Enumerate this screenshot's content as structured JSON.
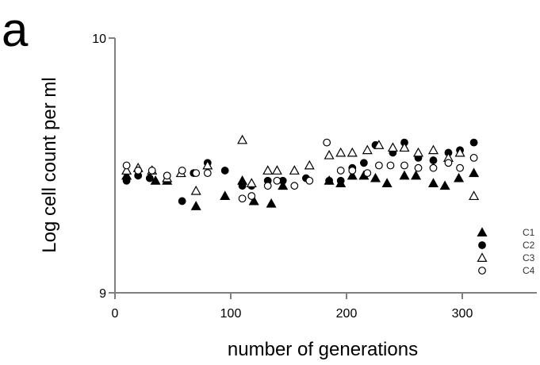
{
  "panel_label": "a",
  "chart_data": {
    "type": "scatter",
    "title": "",
    "xlabel": "number of generations",
    "ylabel": "Log cell count per ml",
    "xlim": [
      0,
      360
    ],
    "ylim": [
      9,
      10
    ],
    "x_ticks": [
      0,
      100,
      200,
      300
    ],
    "y_ticks": [
      9,
      10
    ],
    "grid": false,
    "legend_position": "bottom-right",
    "series": [
      {
        "name": "C1",
        "marker": "filled-triangle",
        "points": [
          [
            10,
            9.46
          ],
          [
            35,
            9.44
          ],
          [
            45,
            9.44
          ],
          [
            70,
            9.34
          ],
          [
            95,
            9.38
          ],
          [
            110,
            9.44
          ],
          [
            120,
            9.36
          ],
          [
            135,
            9.35
          ],
          [
            145,
            9.42
          ],
          [
            185,
            9.44
          ],
          [
            195,
            9.43
          ],
          [
            205,
            9.46
          ],
          [
            215,
            9.46
          ],
          [
            225,
            9.45
          ],
          [
            235,
            9.43
          ],
          [
            250,
            9.46
          ],
          [
            260,
            9.46
          ],
          [
            275,
            9.43
          ],
          [
            285,
            9.42
          ],
          [
            297,
            9.45
          ],
          [
            310,
            9.47
          ]
        ]
      },
      {
        "name": "C2",
        "marker": "filled-circle",
        "points": [
          [
            10,
            9.44
          ],
          [
            20,
            9.46
          ],
          [
            30,
            9.45
          ],
          [
            45,
            9.46
          ],
          [
            58,
            9.36
          ],
          [
            68,
            9.47
          ],
          [
            80,
            9.51
          ],
          [
            95,
            9.48
          ],
          [
            110,
            9.42
          ],
          [
            118,
            9.42
          ],
          [
            132,
            9.44
          ],
          [
            145,
            9.44
          ],
          [
            165,
            9.45
          ],
          [
            185,
            9.44
          ],
          [
            195,
            9.44
          ],
          [
            205,
            9.49
          ],
          [
            215,
            9.51
          ],
          [
            225,
            9.58
          ],
          [
            240,
            9.55
          ],
          [
            250,
            9.59
          ],
          [
            262,
            9.53
          ],
          [
            275,
            9.52
          ],
          [
            288,
            9.55
          ],
          [
            298,
            9.56
          ],
          [
            310,
            9.59
          ]
        ]
      },
      {
        "name": "C3",
        "marker": "open-triangle",
        "points": [
          [
            10,
            9.48
          ],
          [
            20,
            9.49
          ],
          [
            32,
            9.48
          ],
          [
            45,
            9.45
          ],
          [
            57,
            9.47
          ],
          [
            70,
            9.4
          ],
          [
            80,
            9.5
          ],
          [
            110,
            9.6
          ],
          [
            118,
            9.43
          ],
          [
            132,
            9.48
          ],
          [
            140,
            9.48
          ],
          [
            155,
            9.48
          ],
          [
            168,
            9.5
          ],
          [
            185,
            9.54
          ],
          [
            195,
            9.55
          ],
          [
            205,
            9.55
          ],
          [
            218,
            9.56
          ],
          [
            228,
            9.58
          ],
          [
            240,
            9.57
          ],
          [
            250,
            9.57
          ],
          [
            262,
            9.55
          ],
          [
            275,
            9.56
          ],
          [
            288,
            9.53
          ],
          [
            298,
            9.55
          ],
          [
            310,
            9.38
          ]
        ]
      },
      {
        "name": "C4",
        "marker": "open-circle",
        "points": [
          [
            10,
            9.5
          ],
          [
            20,
            9.48
          ],
          [
            32,
            9.48
          ],
          [
            45,
            9.46
          ],
          [
            58,
            9.48
          ],
          [
            70,
            9.47
          ],
          [
            80,
            9.47
          ],
          [
            110,
            9.37
          ],
          [
            118,
            9.38
          ],
          [
            132,
            9.42
          ],
          [
            140,
            9.44
          ],
          [
            155,
            9.42
          ],
          [
            168,
            9.44
          ],
          [
            183,
            9.59
          ],
          [
            195,
            9.48
          ],
          [
            205,
            9.48
          ],
          [
            218,
            9.47
          ],
          [
            228,
            9.5
          ],
          [
            238,
            9.5
          ],
          [
            250,
            9.5
          ],
          [
            262,
            9.49
          ],
          [
            275,
            9.49
          ],
          [
            288,
            9.51
          ],
          [
            298,
            9.49
          ],
          [
            310,
            9.53
          ]
        ]
      }
    ]
  },
  "colors": {
    "axis": "#808080",
    "marker": "#000000"
  }
}
